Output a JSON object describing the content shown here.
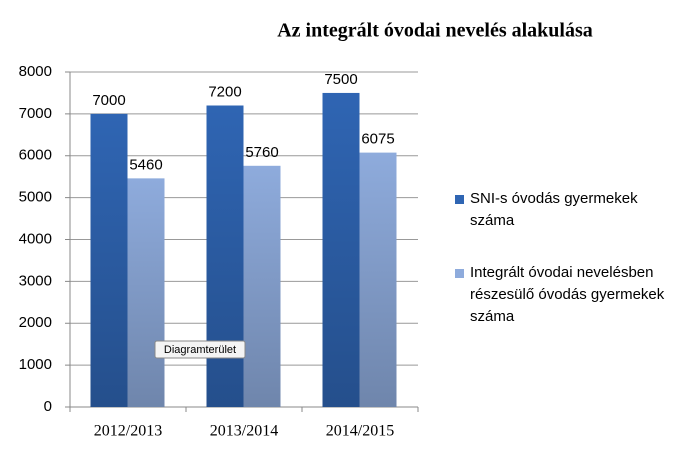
{
  "chart_data": {
    "type": "bar",
    "title": "Az integrált óvodai nevelés alakulása",
    "categories": [
      "2012/2013",
      "2013/2014",
      "2014/2015"
    ],
    "series": [
      {
        "name": "SNI-s óvodás gyermekek száma",
        "color": "#2f65b3",
        "values": [
          7000,
          7200,
          7500
        ]
      },
      {
        "name": "Integrált óvodai nevelésben részesülő óvodás gyermekek száma",
        "color": "#8eabdc",
        "values": [
          5460,
          5760,
          6075
        ]
      }
    ],
    "ylim": [
      0,
      8000
    ],
    "yticks": [
      0,
      1000,
      2000,
      3000,
      4000,
      5000,
      6000,
      7000,
      8000
    ],
    "grid": true,
    "legend": "right",
    "tooltip": "Diagramterület"
  }
}
